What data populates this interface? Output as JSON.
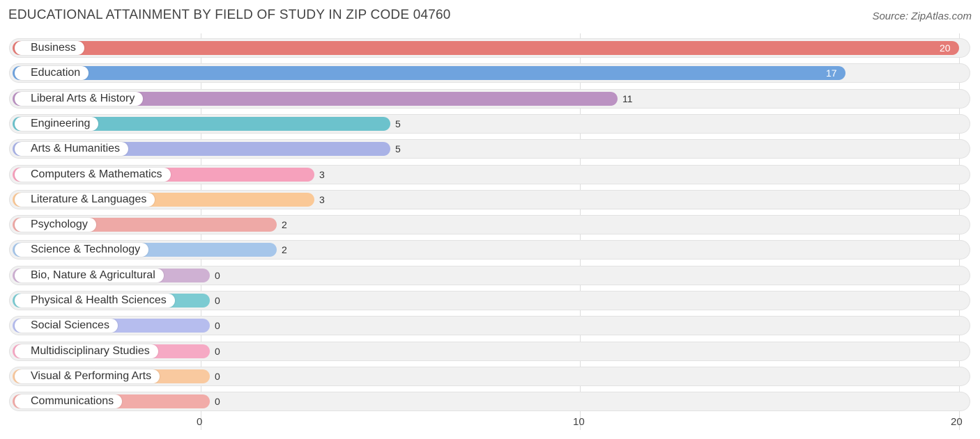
{
  "header": {
    "title": "EDUCATIONAL ATTAINMENT BY FIELD OF STUDY IN ZIP CODE 04760",
    "source": "Source: ZipAtlas.com"
  },
  "chart_data": {
    "type": "bar",
    "orientation": "horizontal",
    "title": "EDUCATIONAL ATTAINMENT BY FIELD OF STUDY IN ZIP CODE 04760",
    "xlim": [
      0,
      20
    ],
    "ticks": [
      {
        "value": 0,
        "label": "0"
      },
      {
        "value": 10,
        "label": "10"
      },
      {
        "value": 20,
        "label": "20"
      }
    ],
    "categories": [
      "Business",
      "Education",
      "Liberal Arts & History",
      "Engineering",
      "Arts & Humanities",
      "Computers & Mathematics",
      "Literature & Languages",
      "Psychology",
      "Science & Technology",
      "Bio, Nature & Agricultural",
      "Physical & Health Sciences",
      "Social Sciences",
      "Multidisciplinary Studies",
      "Visual & Performing Arts",
      "Communications"
    ],
    "values": [
      20,
      17,
      11,
      5,
      5,
      3,
      3,
      2,
      2,
      0,
      0,
      0,
      0,
      0,
      0
    ],
    "value_labels": [
      "20",
      "17",
      "11",
      "5",
      "5",
      "3",
      "3",
      "2",
      "2",
      "0",
      "0",
      "0",
      "0",
      "0",
      "0"
    ],
    "colors": [
      "#e57b76",
      "#6fa3de",
      "#bb92c2",
      "#6cc2cc",
      "#a9b2e6",
      "#f6a1bc",
      "#fac896",
      "#eea9a6",
      "#a6c6ea",
      "#cfb1d3",
      "#7ccbd2",
      "#b6bdee",
      "#f6a9c4",
      "#f9c99f",
      "#f1aba8"
    ]
  }
}
